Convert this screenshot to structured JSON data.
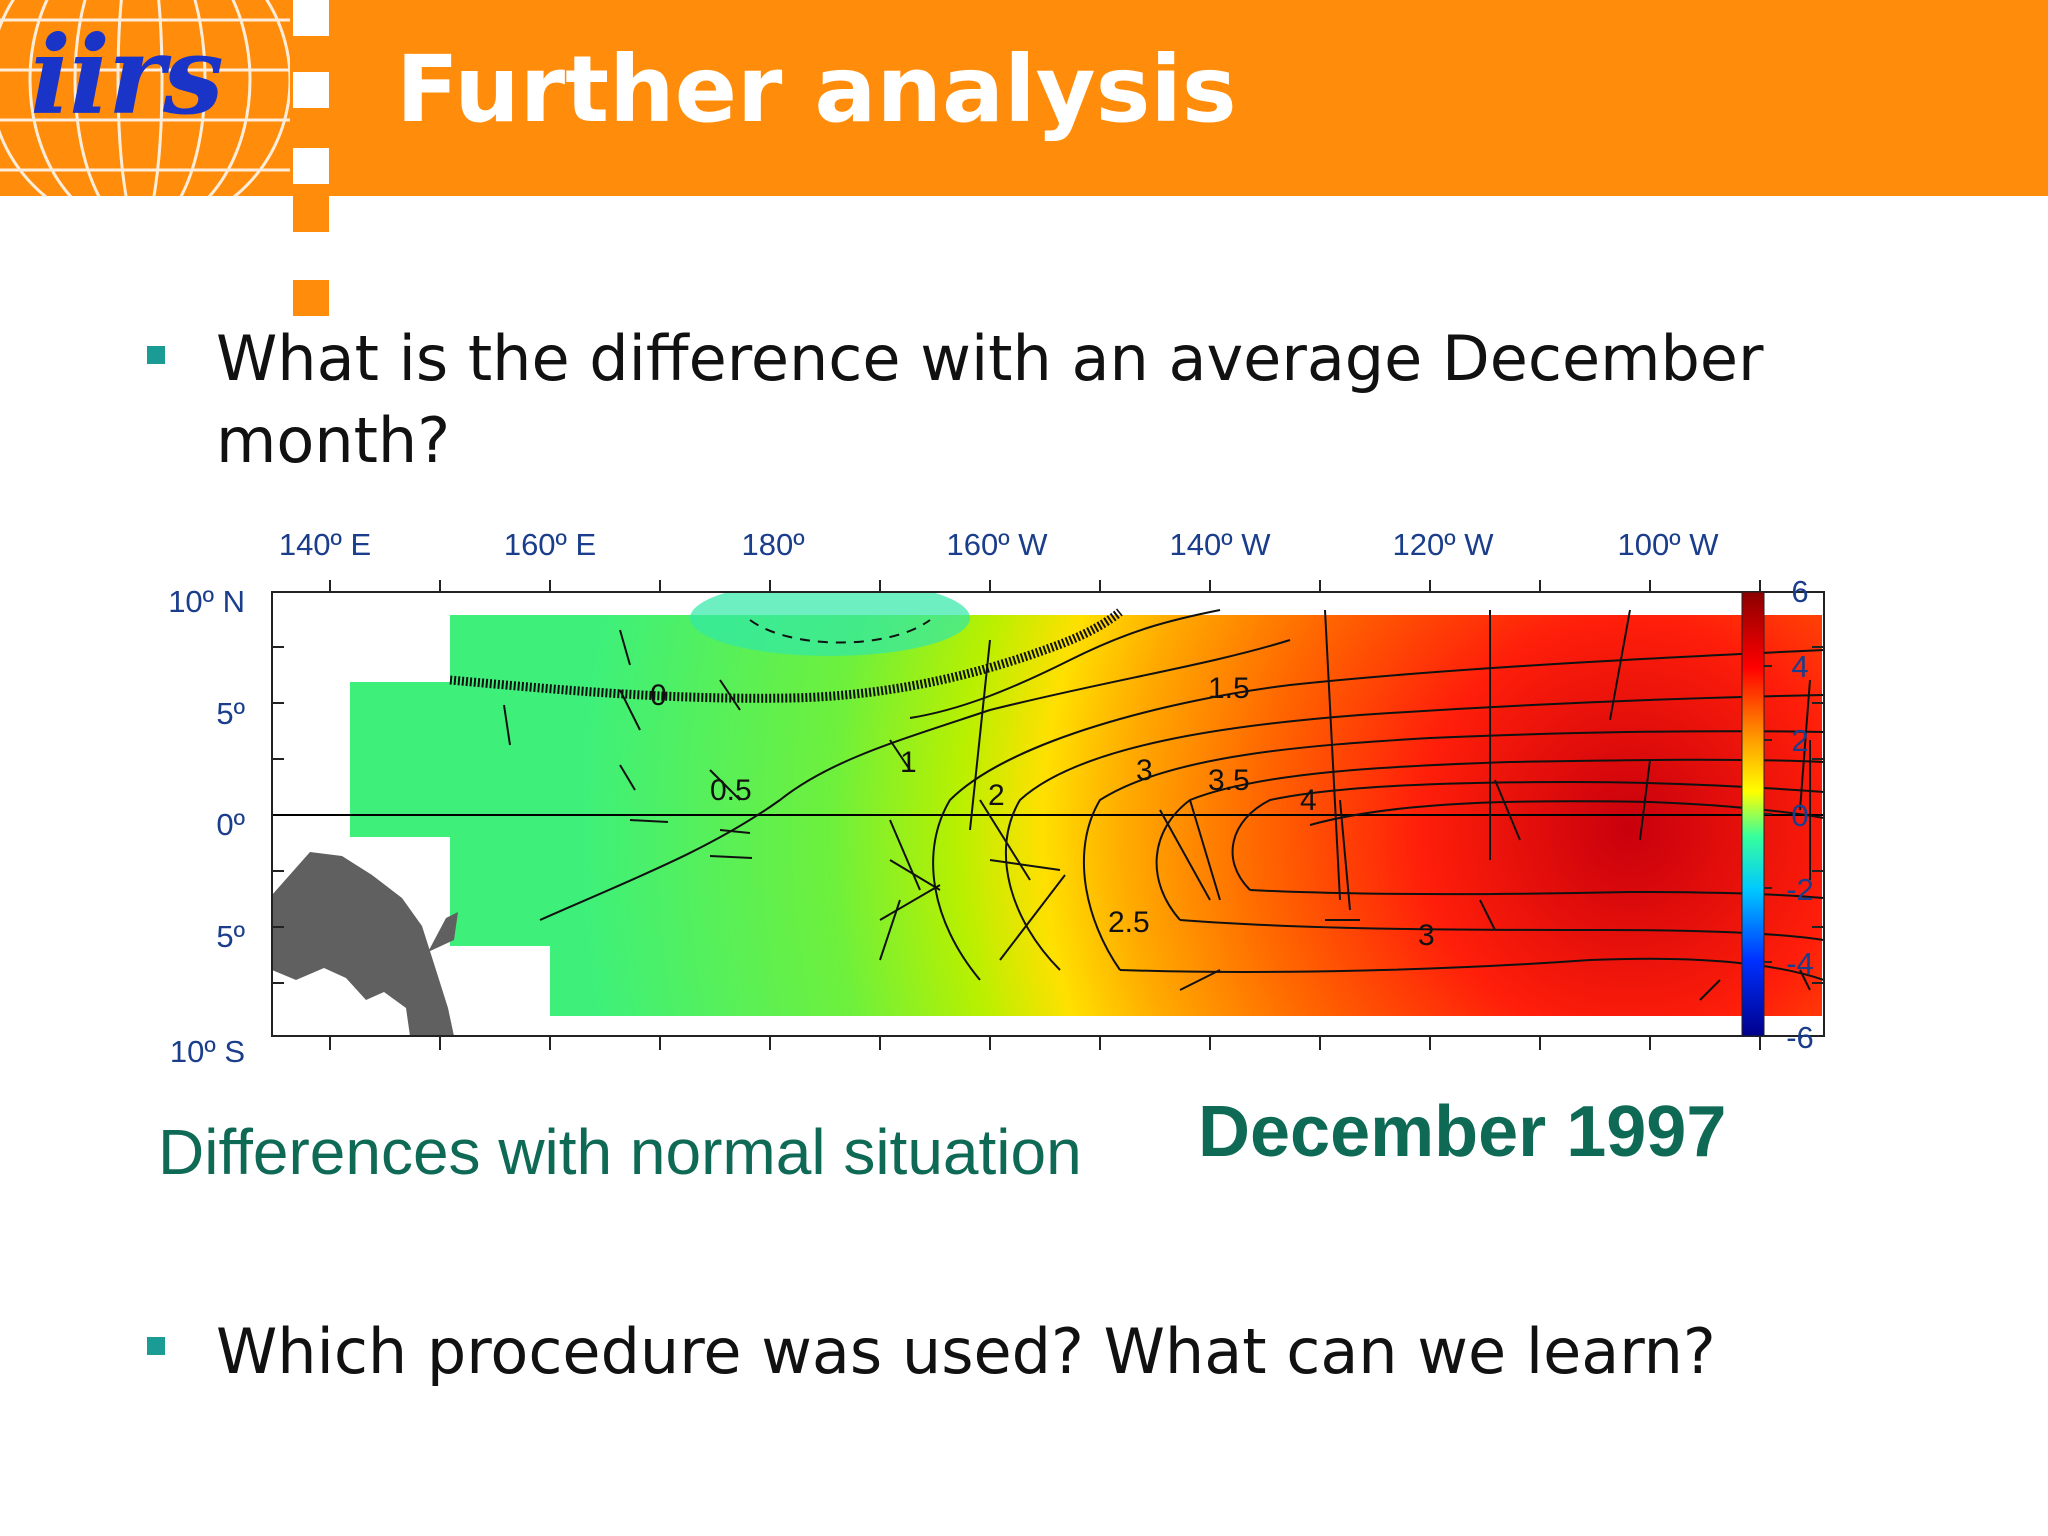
{
  "header": {
    "logo_text": "iirs",
    "title": "Further analysis",
    "accent_color": "#ff8c0a",
    "logo_color": "#1a34c8"
  },
  "bullets": [
    {
      "text": "What is the difference with an average December month?"
    },
    {
      "text": "Which procedure was used?  What can we learn?"
    }
  ],
  "figure": {
    "caption_left": "Differences with normal situation",
    "caption_right": "December 1997",
    "lon_labels": [
      "140º E",
      "160º E",
      "180º",
      "160º W",
      "140º W",
      "120º W",
      "100º W"
    ],
    "lat_labels": [
      "10º N",
      "5º",
      "0º",
      "5º",
      "10º S"
    ],
    "colorbar_labels": [
      "6",
      "4",
      "2",
      "0",
      "-2",
      "-4",
      "-6"
    ],
    "contour_labels": [
      "0",
      "0.5",
      "1",
      "1.5",
      "2",
      "2.5",
      "3",
      "3.5",
      "4",
      "3"
    ]
  },
  "chart_data": {
    "type": "heatmap",
    "title": "",
    "xlabel": "",
    "ylabel": "",
    "x_ticks": [
      "140º E",
      "160º E",
      "180º",
      "160º W",
      "140º W",
      "120º W",
      "100º W"
    ],
    "y_ticks": [
      "10º N",
      "5º",
      "0º",
      "5º",
      "10º S"
    ],
    "colorbar_range": [
      -6,
      6
    ],
    "colorbar_ticks": [
      6,
      4,
      2,
      0,
      -2,
      -4,
      -6
    ],
    "contour_levels": [
      0,
      0.5,
      1,
      1.5,
      2,
      2.5,
      3,
      3.5,
      4
    ]
  }
}
